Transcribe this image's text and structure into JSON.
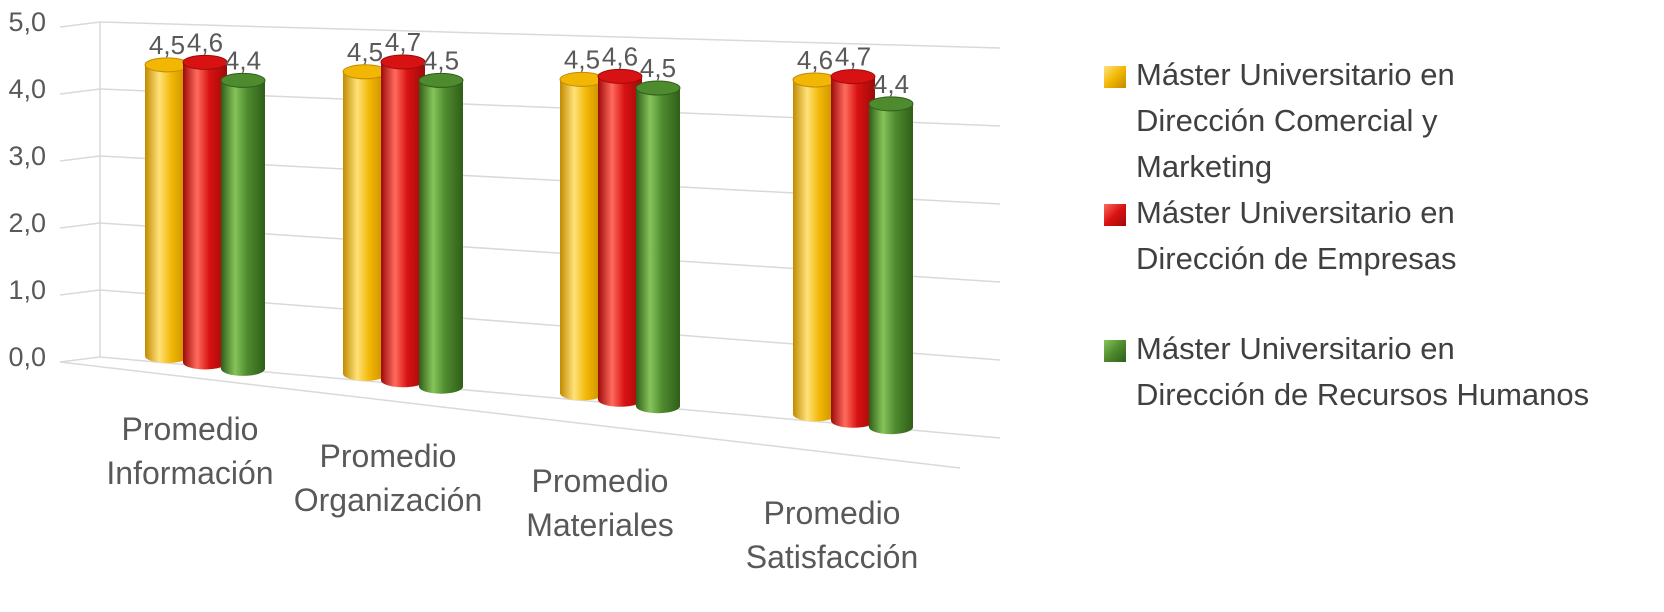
{
  "colors": {
    "series": [
      "#F2B705",
      "#D81212",
      "#4E8A2E"
    ],
    "series_dark": [
      "#C28A00",
      "#9E0A0A",
      "#2F5E18"
    ],
    "series_light": [
      "#FFE27A",
      "#FF6B5C",
      "#86C45A"
    ],
    "axis_text": "#595959",
    "grid": "#D9D9D9"
  },
  "chart_data": {
    "type": "bar",
    "style": "3d-clustered-cylinder",
    "categories": [
      [
        "Promedio",
        "Información"
      ],
      [
        "Promedio",
        "Organización"
      ],
      [
        "Promedio",
        "Materiales"
      ],
      [
        "Promedio",
        "Satisfacción"
      ]
    ],
    "series": [
      {
        "name": "Máster Universitario en Dirección Comercial y Marketing",
        "name_lines": [
          "Máster Universitario en",
          "Dirección Comercial y",
          "Marketing"
        ],
        "values": [
          4.5,
          4.5,
          4.5,
          4.6
        ],
        "value_labels": [
          "4,5",
          "4,5",
          "4,5",
          "4,6"
        ]
      },
      {
        "name": "Máster Universitario en Dirección de Empresas",
        "name_lines": [
          "Máster Universitario en",
          "Dirección de Empresas"
        ],
        "values": [
          4.6,
          4.7,
          4.6,
          4.7
        ],
        "value_labels": [
          "4,6",
          "4,7",
          "4,6",
          "4,7"
        ]
      },
      {
        "name": "Máster Universitario en Dirección de Recursos Humanos",
        "name_lines": [
          "Máster Universitario en",
          "Dirección de Recursos Humanos"
        ],
        "values": [
          4.4,
          4.5,
          4.5,
          4.4
        ],
        "value_labels": [
          "4,4",
          "4,5",
          "4,5",
          "4,4"
        ]
      }
    ],
    "y_ticks": [
      0,
      1,
      2,
      3,
      4,
      5
    ],
    "y_tick_labels": [
      "0,0",
      "1,0",
      "2,0",
      "3,0",
      "4,0",
      "5,0"
    ],
    "ylim": [
      0,
      5
    ],
    "grid": true,
    "legend_position": "right"
  }
}
